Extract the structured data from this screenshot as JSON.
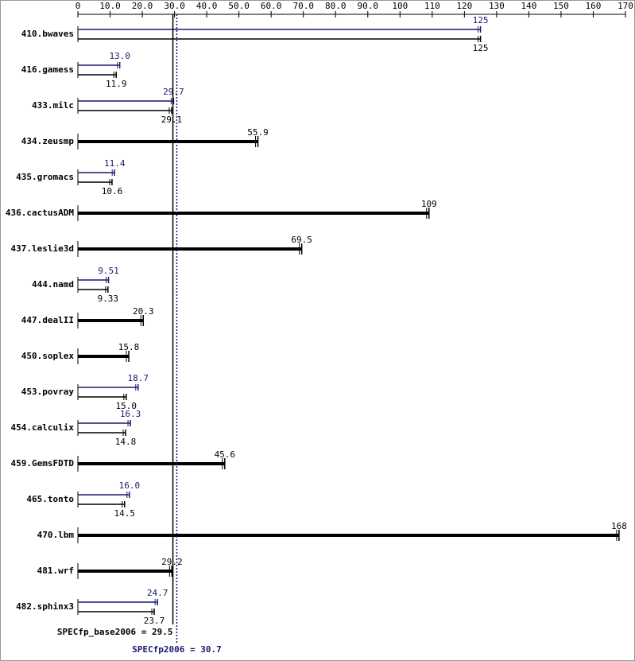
{
  "chart_data": {
    "type": "hbar",
    "categories": [
      "410.bwaves",
      "416.gamess",
      "433.milc",
      "434.zeusmp",
      "435.gromacs",
      "436.cactusADM",
      "437.leslie3d",
      "444.namd",
      "447.dealII",
      "450.soplex",
      "453.povray",
      "454.calculix",
      "459.GemsFDTD",
      "465.tonto",
      "470.lbm",
      "481.wrf",
      "482.sphinx3"
    ],
    "series": [
      {
        "color": "#000000",
        "values": [
          125,
          11.9,
          29.1,
          55.9,
          10.6,
          109,
          69.5,
          9.33,
          20.3,
          15.8,
          15.0,
          14.8,
          45.6,
          14.5,
          168,
          29.2,
          23.7
        ],
        "value_labels": [
          "125",
          "11.9",
          "29.1",
          "55.9",
          "10.6",
          "109",
          "69.5",
          "9.33",
          "20.3",
          "15.8",
          "15.0",
          "14.8",
          "45.6",
          "14.5",
          "168",
          "29.2",
          "23.7"
        ]
      },
      {
        "color": "#191970",
        "values": [
          125,
          13.0,
          29.7,
          null,
          11.4,
          null,
          null,
          9.51,
          null,
          null,
          18.7,
          16.3,
          null,
          16.0,
          null,
          null,
          24.7
        ],
        "value_labels": [
          "125",
          "13.0",
          "29.7",
          null,
          "11.4",
          null,
          null,
          "9.51",
          null,
          null,
          "18.7",
          "16.3",
          null,
          "16.0",
          null,
          null,
          "24.7"
        ]
      }
    ],
    "xlim": [
      0,
      170
    ],
    "xticks": [
      0,
      {
        "value": 10,
        "label": "10.0"
      },
      {
        "value": 20,
        "label": "20.0"
      },
      {
        "value": 30,
        "label": "30.0"
      },
      {
        "value": 40,
        "label": "40.0"
      },
      {
        "value": 50,
        "label": "50.0"
      },
      {
        "value": 60,
        "label": "60.0"
      },
      {
        "value": 70,
        "label": "70.0"
      },
      {
        "value": 80,
        "label": "80.0"
      },
      {
        "value": 90,
        "label": "90.0"
      },
      100,
      110,
      120,
      130,
      140,
      150,
      160,
      170
    ],
    "reference_lines": [
      {
        "label": "SPECfp_base2006 = 29.5",
        "value": 29.5,
        "color": "#000000"
      },
      {
        "label": "SPECfp2006 = 30.7",
        "value": 30.7,
        "color": "#191970"
      }
    ]
  }
}
